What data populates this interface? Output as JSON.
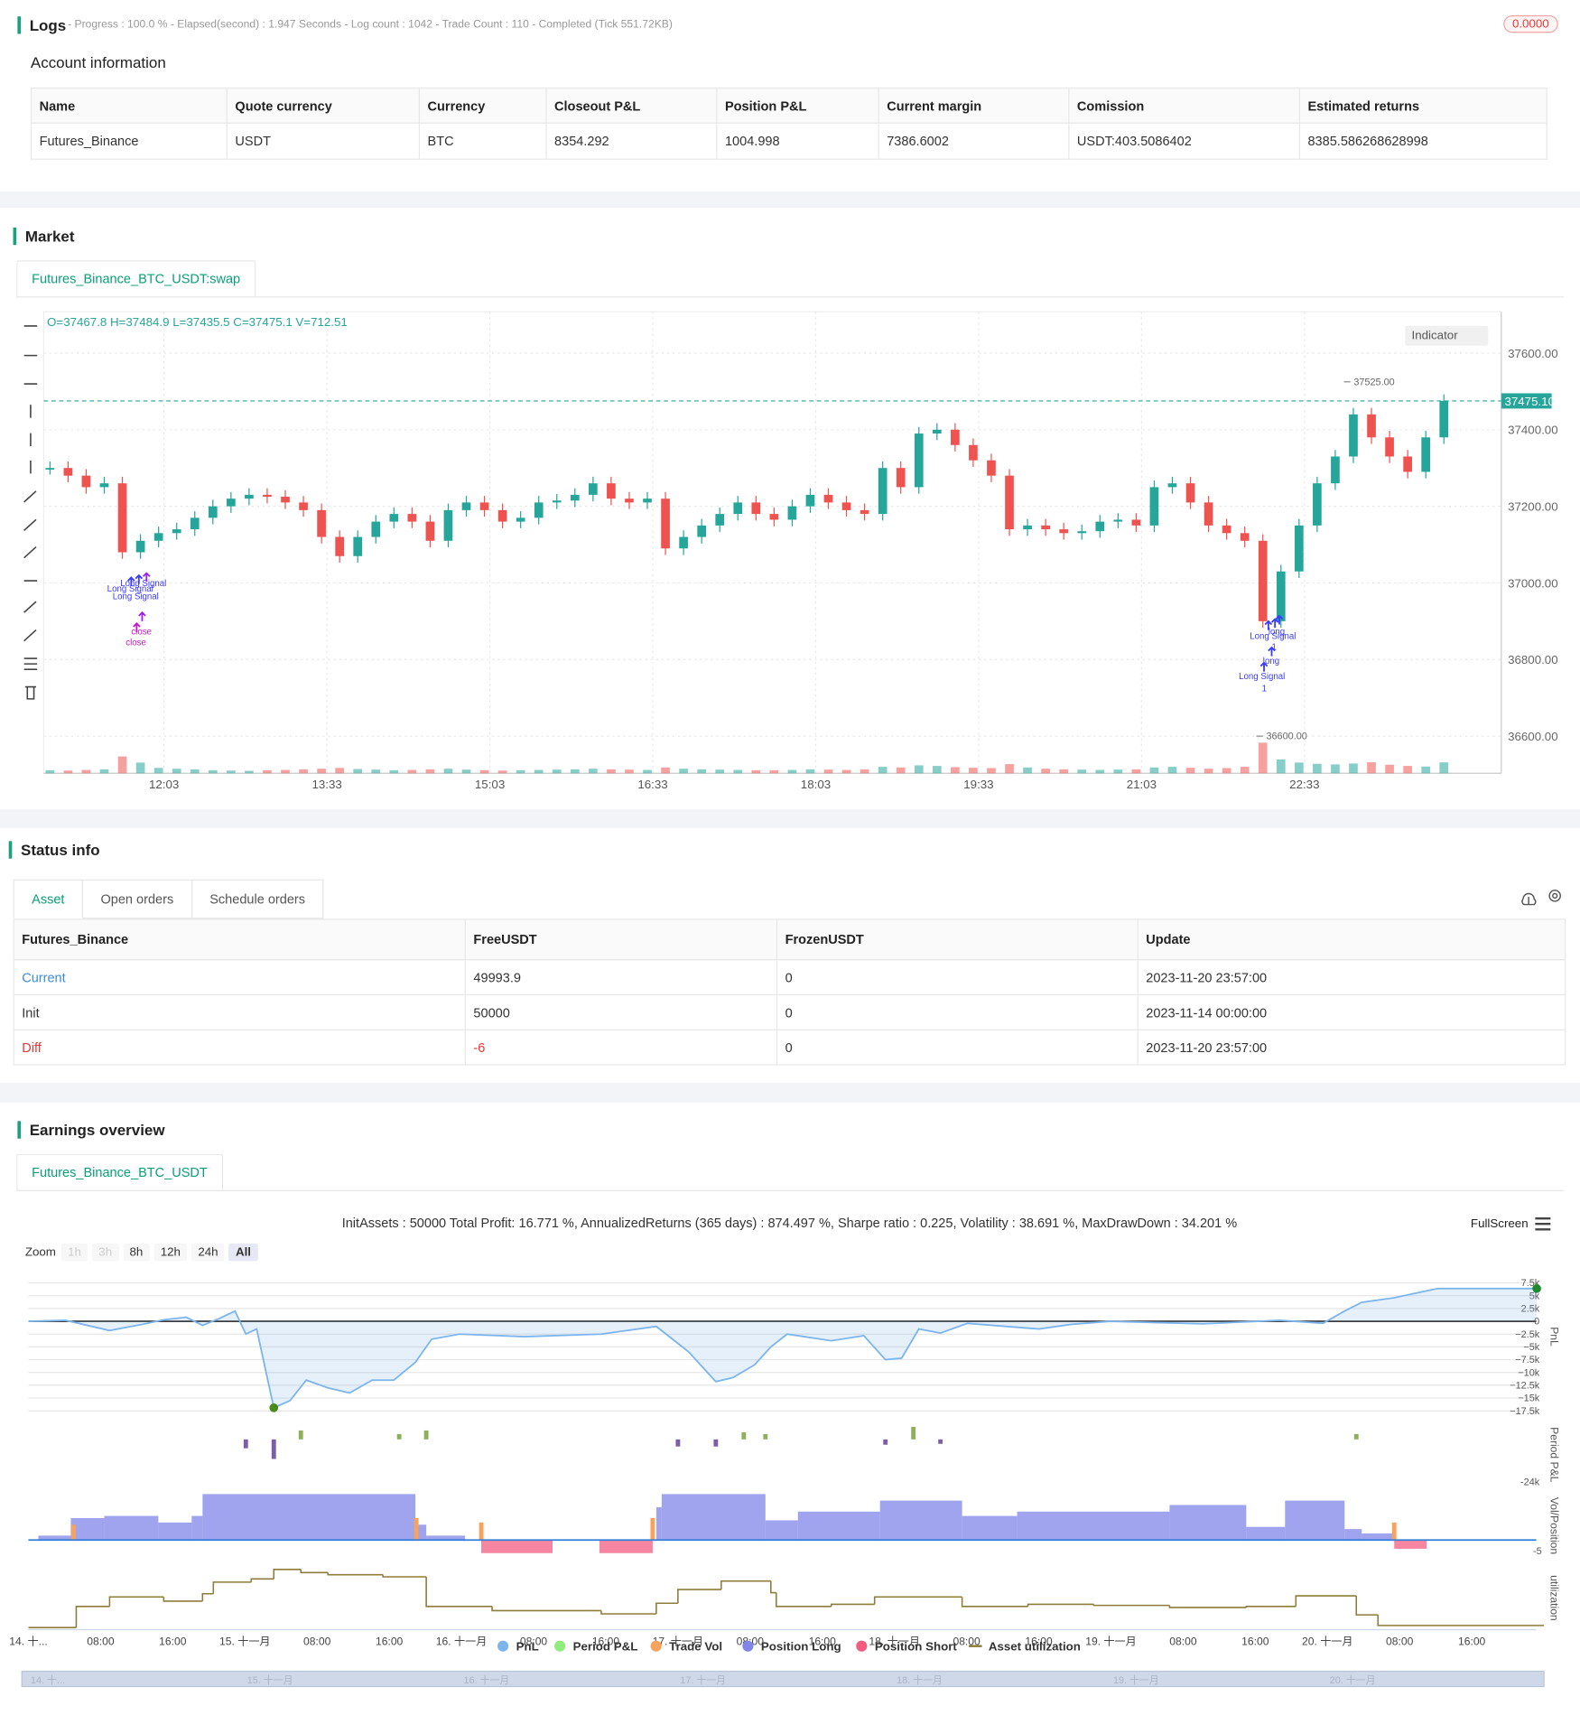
{
  "logs": {
    "title": "Logs",
    "progress": "- Progress : 100.0 % - Elapsed(second) : 1.947  Seconds - Log count : 1042 - Trade Count : 110 - Completed (Tick 551.72KB)",
    "badge": "0.0000"
  },
  "account": {
    "title": "Account information",
    "headers": [
      "Name",
      "Quote currency",
      "Currency",
      "Closeout P&L",
      "Position P&L",
      "Current margin",
      "Comission",
      "Estimated returns"
    ],
    "row": [
      "Futures_Binance",
      "USDT",
      "BTC",
      "8354.292",
      "1004.998",
      "7386.6002",
      "USDT:403.5086402",
      "8385.586268628998"
    ]
  },
  "market": {
    "title": "Market",
    "tab": "Futures_Binance_BTC_USDT:swap",
    "indicator": "Indicator"
  },
  "status": {
    "title": "Status info",
    "tabs": [
      "Asset",
      "Open orders",
      "Schedule orders"
    ],
    "headers": [
      "Futures_Binance",
      "FreeUSDT",
      "FrozenUSDT",
      "Update"
    ],
    "rows": [
      [
        "Current",
        "49993.9",
        "0",
        "2023-11-20 23:57:00"
      ],
      [
        "Init",
        "50000",
        "0",
        "2023-11-14 00:00:00"
      ],
      [
        "Diff",
        "-6",
        "0",
        "2023-11-20 23:57:00"
      ]
    ]
  },
  "earnings": {
    "title": "Earnings overview",
    "tab": "Futures_Binance_BTC_USDT",
    "zoom_label": "Zoom",
    "zoom": [
      "1h",
      "3h",
      "8h",
      "12h",
      "24h",
      "All"
    ],
    "fullscreen": "FullScreen"
  },
  "chart_data": [
    {
      "type": "candlestick",
      "ohlc_label": "O=37467.8 H=37484.9 L=37435.5 C=37475.1 V=712.51",
      "up_color": "#26a69a",
      "down_color": "#ef5350",
      "x": [
        "11:00",
        "11:10",
        "11:20",
        "11:30",
        "11:40",
        "11:50",
        "12:00",
        "12:10",
        "12:20",
        "12:30",
        "12:40",
        "12:50",
        "13:00",
        "13:10",
        "13:20",
        "13:30",
        "13:40",
        "13:50",
        "14:00",
        "14:10",
        "14:20",
        "14:30",
        "14:40",
        "14:50",
        "15:00",
        "15:10",
        "15:20",
        "15:30",
        "15:40",
        "15:50",
        "16:00",
        "16:10",
        "16:20",
        "16:30",
        "16:40",
        "16:50",
        "17:00",
        "17:10",
        "17:20",
        "17:30",
        "17:40",
        "17:50",
        "18:00",
        "18:10",
        "18:20",
        "18:30",
        "18:40",
        "18:50",
        "19:00",
        "19:10",
        "19:20",
        "19:30",
        "19:40",
        "19:50",
        "20:00",
        "20:10",
        "20:20",
        "20:30",
        "20:40",
        "20:50",
        "21:00",
        "21:10",
        "21:20",
        "21:30",
        "21:40",
        "21:50",
        "22:00",
        "22:10",
        "22:20",
        "22:30",
        "22:40",
        "22:50",
        "23:00",
        "23:10",
        "23:20",
        "23:30",
        "23:40",
        "23:50"
      ],
      "close": [
        37300,
        37280,
        37250,
        37260,
        37080,
        37110,
        37130,
        37140,
        37170,
        37200,
        37220,
        37230,
        37225,
        37210,
        37190,
        37120,
        37070,
        37120,
        37160,
        37180,
        37160,
        37110,
        37190,
        37210,
        37190,
        37160,
        37170,
        37210,
        37215,
        37230,
        37260,
        37220,
        37210,
        37220,
        37090,
        37120,
        37150,
        37180,
        37210,
        37180,
        37165,
        37200,
        37230,
        37210,
        37190,
        37180,
        37300,
        37250,
        37390,
        37400,
        37360,
        37320,
        37280,
        37140,
        37150,
        37140,
        37130,
        37135,
        37160,
        37165,
        37150,
        37250,
        37260,
        37210,
        37150,
        37130,
        37110,
        36900,
        37030,
        37150,
        37260,
        37330,
        37440,
        37380,
        37330,
        37290,
        37380,
        37475.1
      ],
      "volume": [
        200,
        180,
        220,
        260,
        1100,
        700,
        350,
        300,
        250,
        200,
        180,
        160,
        200,
        220,
        260,
        300,
        350,
        280,
        240,
        200,
        220,
        260,
        300,
        240,
        200,
        180,
        200,
        220,
        240,
        260,
        300,
        260,
        240,
        220,
        380,
        300,
        260,
        240,
        220,
        200,
        200,
        220,
        260,
        240,
        220,
        260,
        420,
        380,
        520,
        480,
        400,
        360,
        340,
        600,
        380,
        300,
        260,
        240,
        220,
        240,
        260,
        380,
        420,
        360,
        300,
        340,
        420,
        2000,
        900,
        700,
        620,
        580,
        640,
        720,
        560,
        480,
        440,
        712.51
      ],
      "ylim": [
        36503,
        37708
      ],
      "yticks": [
        {
          "value": 36600,
          "label": "36600.00"
        },
        {
          "value": 36800,
          "label": "36800.00"
        },
        {
          "value": 37000,
          "label": "37000.00"
        },
        {
          "value": 37200,
          "label": "37200.00"
        },
        {
          "value": 37400,
          "label": "37400.00"
        },
        {
          "value": 37600,
          "label": "37600.00"
        }
      ],
      "xticks": [
        "12:03",
        "13:33",
        "15:03",
        "16:33",
        "18:03",
        "19:33",
        "21:03",
        "22:33"
      ],
      "last_price": {
        "value": 37475.1,
        "label": "37475.10"
      },
      "annotations": [
        {
          "value": 37525,
          "label": "37525.00"
        },
        {
          "value": 36600,
          "label": "36600.00"
        }
      ],
      "signals": [
        "Long Signal",
        "Long Signal",
        "Long Signal",
        "close",
        "close",
        "long",
        "Long Signal",
        "1",
        "long",
        "Long Signal",
        "1"
      ]
    },
    {
      "type": "line",
      "title": "InitAssets : 50000 Total Profit: 16.771 %, AnnualizedReturns (365 days) : 874.497 %, Sharpe ratio : 0.225, Volatility : 38.691 %, MaxDrawDown : 34.201 %",
      "axis_label": "PnL",
      "xlim": [
        0,
        168
      ],
      "ylim": [
        -18800,
        9200
      ],
      "yticks": [
        {
          "value": 7500,
          "label": "7.5k"
        },
        {
          "value": 5000,
          "label": "5k"
        },
        {
          "value": 2500,
          "label": "2.5k"
        },
        0,
        {
          "value": -2500,
          "label": "−2.5k"
        },
        {
          "value": -5000,
          "label": "−5k"
        },
        {
          "value": -7500,
          "label": "−7.5k"
        },
        {
          "value": -10000,
          "label": "−10k"
        },
        {
          "value": -12500,
          "label": "−12.5k"
        },
        {
          "value": -15000,
          "label": "−15k"
        },
        {
          "value": -17500,
          "label": "−17.5k"
        }
      ],
      "xticks": [
        {
          "value": 0,
          "label": "14. 十..."
        },
        {
          "value": 8,
          "label": "08:00"
        },
        {
          "value": 16,
          "label": "16:00"
        },
        {
          "value": 24,
          "label": "15. 十一月"
        },
        {
          "value": 32,
          "label": "08:00"
        },
        {
          "value": 40,
          "label": "16:00"
        },
        {
          "value": 48,
          "label": "16. 十一月"
        },
        {
          "value": 56,
          "label": "08:00"
        },
        {
          "value": 64,
          "label": "16:00"
        },
        {
          "value": 72,
          "label": "17. 十一月"
        },
        {
          "value": 80,
          "label": "08:00"
        },
        {
          "value": 88,
          "label": "16:00"
        },
        {
          "value": 96,
          "label": "18. 十一月"
        },
        {
          "value": 104,
          "label": "08:00"
        },
        {
          "value": 112,
          "label": "16:00"
        },
        {
          "value": 120,
          "label": "19. 十一月"
        },
        {
          "value": 128,
          "label": "08:00"
        },
        {
          "value": 136,
          "label": "16:00"
        },
        {
          "value": 144,
          "label": "20. 十一月"
        },
        {
          "value": 152,
          "label": "08:00"
        },
        {
          "value": 160,
          "label": "16:00"
        }
      ],
      "series": [
        {
          "name": "PnL",
          "color": "#7cb5ec",
          "x": [
            0,
            4.1,
            9,
            12.6,
            15,
            17.5,
            19.3,
            21.1,
            22.9,
            24.1,
            25.3,
            27.2,
            29,
            30.8,
            33.2,
            35.6,
            38.1,
            40.5,
            42.9,
            44.7,
            47.8,
            55,
            63.5,
            69.6,
            71.4,
            73.2,
            76.2,
            78.1,
            80.5,
            82.3,
            84.1,
            89,
            92.6,
            95,
            96.8,
            98.7,
            101.1,
            104.1,
            112,
            115.6,
            119.9,
            130.2,
            138.7,
            143.5,
            145.9,
            147.8,
            151.4,
            156.2,
            167.2
          ],
          "values": [
            0,
            200,
            -1800,
            -600,
            300,
            800,
            -800,
            500,
            2000,
            -2500,
            -1500,
            -16900,
            -15500,
            -11500,
            -13000,
            -14000,
            -11500,
            -11500,
            -8000,
            -3500,
            -2500,
            -3000,
            -2500,
            -1000,
            -3500,
            -6000,
            -11800,
            -11000,
            -8500,
            -5000,
            -2500,
            -3800,
            -2800,
            -7500,
            -7200,
            -1500,
            -2300,
            -400,
            -1500,
            -600,
            0,
            -500,
            200,
            -400,
            2000,
            3700,
            4600,
            6400,
            6400
          ]
        }
      ]
    },
    {
      "type": "bar",
      "axis_label": "Period P&L",
      "xlim": [
        0,
        168
      ],
      "ylim": [
        -25800,
        8600
      ],
      "yticks": [
        {
          "value": -24000,
          "label": "-24k"
        }
      ],
      "positive_color": "#8fb05a",
      "negative_color": "#7b5ea7",
      "series": [
        {
          "name": "Period P&L",
          "color": "#90ed7d",
          "x": [
            24.1,
            27.2,
            30.2,
            41.1,
            44.1,
            72,
            76.2,
            79.3,
            81.7,
            95,
            98.1,
            101.1,
            147.2
          ],
          "values": [
            -5000,
            -11000,
            5000,
            3000,
            5000,
            -4000,
            -4000,
            4000,
            3000,
            -3000,
            7000,
            -2500,
            3000
          ]
        }
      ]
    },
    {
      "type": "step",
      "axis_label": "Vol/Position",
      "xlim": [
        0,
        168
      ],
      "ylim": [
        -8.5,
        21.5
      ],
      "yticks": [
        -5
      ],
      "series": [
        {
          "name": "Trade Vol",
          "color": "#f7a35c",
          "kind": "bar",
          "x": [
            5,
            43,
            50.2,
            69.2,
            151.4
          ],
          "values": [
            7,
            10,
            8,
            10,
            8
          ]
        },
        {
          "name": "Position Long",
          "color": "#8085e9",
          "kind": "step",
          "x": [
            1.1,
            4.7,
            8.4,
            14.4,
            18.1,
            19.3,
            42.9,
            44.1,
            48.4,
            69.6,
            70.2,
            81.7,
            85.3,
            94.4,
            103.5,
            109.6,
            126.5,
            135,
            139.3,
            145.9,
            147.8,
            151.4
          ],
          "values": [
            2,
            10,
            11,
            8,
            11,
            21,
            7,
            2,
            0,
            15,
            21,
            9,
            13,
            18,
            11,
            13,
            16,
            6,
            18,
            5,
            3,
            0
          ]
        },
        {
          "name": "Position Short",
          "color": "#f15c80",
          "kind": "step",
          "x": [
            50.2,
            58.1,
            63.3,
            69.2,
            151.4,
            155
          ],
          "values": [
            -6,
            0,
            -6,
            0,
            -4,
            0
          ]
        }
      ]
    },
    {
      "type": "step",
      "axis_label": "utilization",
      "xlim": [
        0,
        168
      ],
      "ylim": [
        0,
        60
      ],
      "series": [
        {
          "name": "Asset utilization",
          "color": "#8d7c3a",
          "kind": "line",
          "x": [
            0,
            5.3,
            9,
            15,
            19.3,
            20.5,
            24.7,
            27.2,
            30.2,
            33.2,
            39.3,
            44.1,
            51.4,
            63.5,
            69.6,
            72,
            76.8,
            82.3,
            82.9,
            89,
            93.8,
            103.5,
            110.8,
            118.1,
            126.5,
            135,
            140.5,
            147.2,
            149.6
          ],
          "values": [
            2,
            22,
            31,
            27,
            34,
            45,
            48,
            57,
            54,
            52,
            50,
            22,
            18,
            15,
            25,
            38,
            46,
            35,
            22,
            24,
            31,
            22,
            24,
            23,
            21,
            22,
            32,
            14,
            4
          ]
        }
      ]
    }
  ]
}
